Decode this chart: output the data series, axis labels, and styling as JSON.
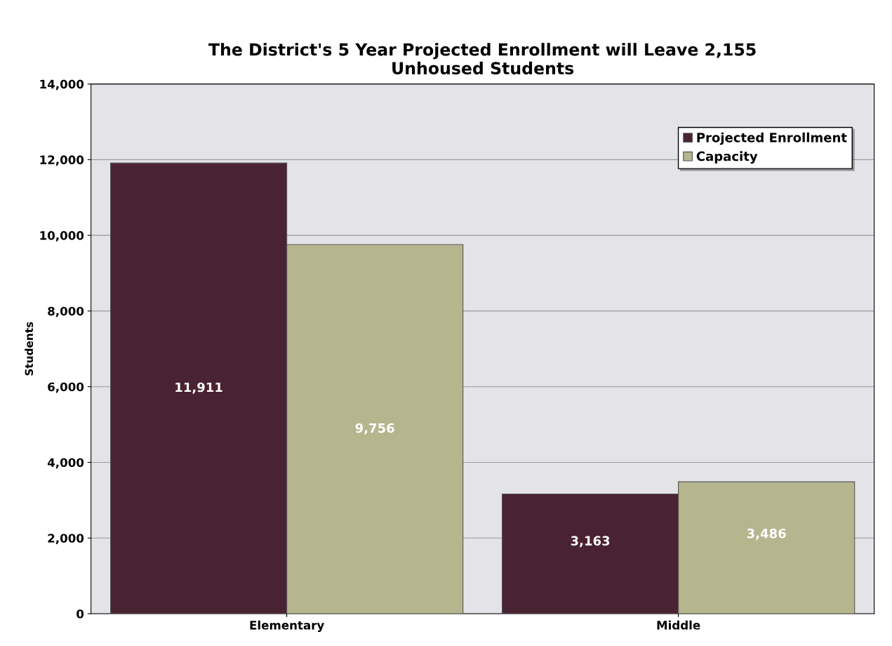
{
  "chart_data": {
    "type": "bar",
    "title": "The District's 5 Year Projected Enrollment will Leave 2,155\nUnhoused Students",
    "ylabel": "Students",
    "categories": [
      "Elementary",
      "Middle"
    ],
    "series": [
      {
        "name": "Projected Enrollment",
        "color": "#4a2332",
        "values": [
          11911,
          3163
        ],
        "value_labels": [
          "11,911",
          "3,163"
        ]
      },
      {
        "name": "Capacity",
        "color": "#b5b58e",
        "values": [
          9756,
          3486
        ],
        "value_labels": [
          "9,756",
          "3,486"
        ]
      }
    ],
    "ylim": [
      0,
      14000
    ],
    "yticks": [
      {
        "value": 0,
        "label": "0"
      },
      {
        "value": 2000,
        "label": "2,000"
      },
      {
        "value": 4000,
        "label": "4,000"
      },
      {
        "value": 6000,
        "label": "6,000"
      },
      {
        "value": 8000,
        "label": "8,000"
      },
      {
        "value": 10000,
        "label": "10,000"
      },
      {
        "value": 12000,
        "label": "12,000"
      },
      {
        "value": 14000,
        "label": "14,000"
      }
    ],
    "grid": "y",
    "legend": "top right"
  }
}
